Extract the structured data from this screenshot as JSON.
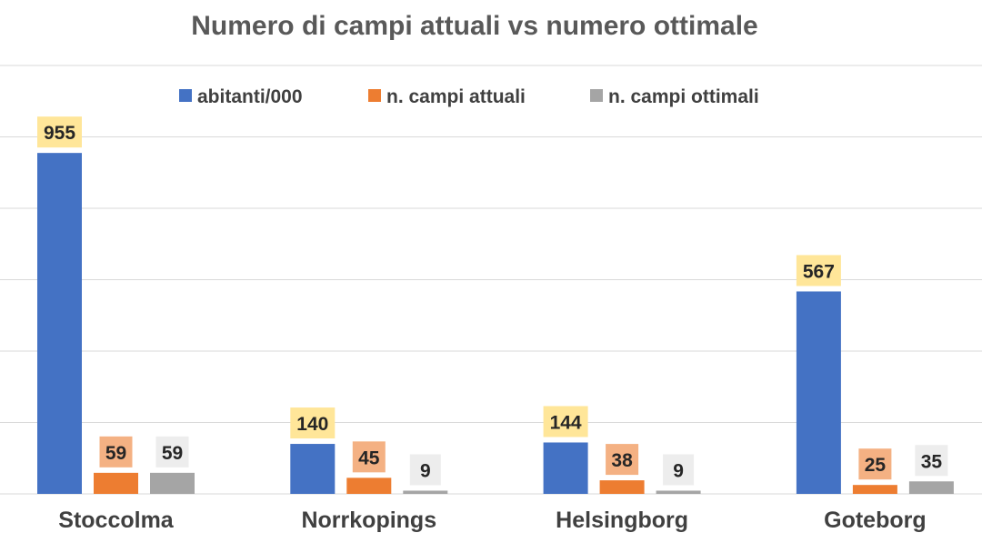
{
  "chart_data": {
    "type": "bar",
    "title": "Numero di campi attuali vs numero ottimale",
    "categories": [
      "Stoccolma",
      "Norrkopings",
      "Helsingborg",
      "Goteborg"
    ],
    "series": [
      {
        "name": "abitanti/000",
        "values": [
          955,
          140,
          144,
          567
        ],
        "color": "#4472C4",
        "label_bg": "#FFE699"
      },
      {
        "name": "n. campi attuali",
        "values": [
          59,
          45,
          38,
          25
        ],
        "color": "#ED7D31",
        "label_bg": "#F4B183"
      },
      {
        "name": "n. campi ottimali",
        "values": [
          59,
          9,
          9,
          35
        ],
        "color": "#A5A5A5",
        "label_bg": "#EDEDED"
      }
    ],
    "ylim": [
      0,
      1200
    ],
    "grid": true,
    "legend_position": "top",
    "gridline_color": "#D9D9D9",
    "axis_color": "#D9D9D9"
  }
}
